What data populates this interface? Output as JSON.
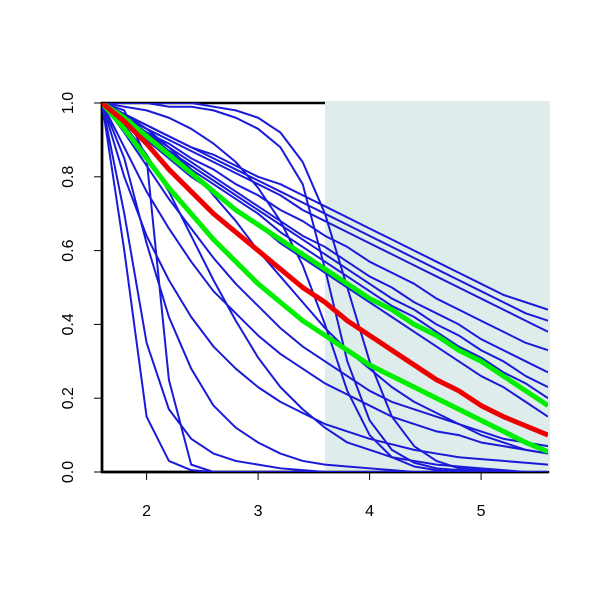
{
  "chart_data": {
    "type": "line",
    "xlim": [
      1.6,
      5.6
    ],
    "ylim": [
      0,
      1
    ],
    "xticks": [
      2,
      3,
      4,
      5
    ],
    "yticks": [
      {
        "value": 0,
        "label": "0.0"
      },
      {
        "value": 0.2,
        "label": "0.2"
      },
      {
        "value": 0.4,
        "label": "0.4"
      },
      {
        "value": 0.6,
        "label": "0.6"
      },
      {
        "value": 0.8,
        "label": "0.8"
      },
      {
        "value": 1,
        "label": "1.0"
      }
    ],
    "shade": {
      "x": [
        3.6,
        5.6
      ],
      "color": "#dfecec"
    },
    "x": [
      1.6,
      1.8,
      2.0,
      2.2,
      2.4,
      2.6,
      2.8,
      3.0,
      3.2,
      3.4,
      3.6,
      3.8,
      4.0,
      4.2,
      4.4,
      4.6,
      4.8,
      5.0,
      5.2,
      5.4,
      5.6
    ],
    "series": [
      {
        "color": "#1a1ad8",
        "width": 2,
        "values": [
          1,
          0.97,
          0.94,
          0.91,
          0.88,
          0.86,
          0.83,
          0.8,
          0.78,
          0.75,
          0.72,
          0.69,
          0.66,
          0.63,
          0.6,
          0.57,
          0.54,
          0.51,
          0.48,
          0.46,
          0.44
        ]
      },
      {
        "color": "#1a1ad8",
        "width": 2,
        "values": [
          1,
          0.97,
          0.94,
          0.91,
          0.88,
          0.85,
          0.82,
          0.79,
          0.76,
          0.73,
          0.7,
          0.67,
          0.64,
          0.61,
          0.58,
          0.55,
          0.52,
          0.49,
          0.46,
          0.43,
          0.41
        ]
      },
      {
        "color": "#1a1ad8",
        "width": 2,
        "values": [
          1,
          0.96,
          0.93,
          0.9,
          0.87,
          0.84,
          0.81,
          0.78,
          0.75,
          0.71,
          0.68,
          0.65,
          0.62,
          0.59,
          0.56,
          0.53,
          0.5,
          0.47,
          0.44,
          0.41,
          0.38
        ]
      },
      {
        "color": "#1a1ad8",
        "width": 2,
        "values": [
          1,
          0.96,
          0.92,
          0.89,
          0.85,
          0.82,
          0.78,
          0.75,
          0.71,
          0.68,
          0.64,
          0.61,
          0.57,
          0.54,
          0.51,
          0.47,
          0.44,
          0.41,
          0.38,
          0.35,
          0.33
        ]
      },
      {
        "color": "#1a1ad8",
        "width": 2,
        "values": [
          1,
          0.96,
          0.92,
          0.88,
          0.84,
          0.8,
          0.76,
          0.72,
          0.68,
          0.64,
          0.61,
          0.57,
          0.53,
          0.5,
          0.46,
          0.43,
          0.4,
          0.36,
          0.33,
          0.3,
          0.27
        ]
      },
      {
        "color": "#1a1ad8",
        "width": 2,
        "values": [
          1,
          0.96,
          0.92,
          0.87,
          0.83,
          0.79,
          0.75,
          0.71,
          0.67,
          0.63,
          0.59,
          0.55,
          0.51,
          0.47,
          0.44,
          0.4,
          0.37,
          0.33,
          0.3,
          0.26,
          0.23
        ]
      },
      {
        "color": "#1a1ad8",
        "width": 2,
        "values": [
          1,
          0.96,
          0.91,
          0.87,
          0.82,
          0.78,
          0.74,
          0.7,
          0.65,
          0.61,
          0.57,
          0.53,
          0.49,
          0.45,
          0.42,
          0.38,
          0.34,
          0.31,
          0.27,
          0.24,
          0.2
        ]
      },
      {
        "color": "#1a1ad8",
        "width": 2,
        "values": [
          1,
          0.95,
          0.9,
          0.85,
          0.8,
          0.76,
          0.71,
          0.67,
          0.62,
          0.58,
          0.54,
          0.5,
          0.46,
          0.42,
          0.38,
          0.34,
          0.3,
          0.26,
          0.23,
          0.19,
          0.15
        ]
      },
      {
        "color": "#1a1ad8",
        "width": 2,
        "values": [
          1,
          1,
          1,
          0.99,
          0.99,
          0.98,
          0.96,
          0.93,
          0.88,
          0.78,
          0.55,
          0.3,
          0.14,
          0.06,
          0.025,
          0.01,
          0.005,
          0,
          0,
          0,
          0
        ]
      },
      {
        "color": "#1a1ad8",
        "width": 2,
        "values": [
          1,
          1,
          1,
          1,
          1,
          0.99,
          0.98,
          0.96,
          0.92,
          0.84,
          0.7,
          0.5,
          0.3,
          0.15,
          0.07,
          0.03,
          0.01,
          0.005,
          0,
          0,
          0
        ]
      },
      {
        "color": "#1a1ad8",
        "width": 2,
        "values": [
          1,
          0.99,
          0.98,
          0.96,
          0.93,
          0.89,
          0.84,
          0.77,
          0.68,
          0.56,
          0.4,
          0.22,
          0.1,
          0.04,
          0.015,
          0.005,
          0,
          0,
          0,
          0,
          0
        ]
      },
      {
        "color": "#1a1ad8",
        "width": 2,
        "values": [
          1,
          0.98,
          0.85,
          0.25,
          0.02,
          0,
          0,
          0,
          0,
          0,
          0,
          0,
          0,
          0,
          0,
          0,
          0,
          0,
          0,
          0,
          0
        ]
      },
      {
        "color": "#1a1ad8",
        "width": 2,
        "values": [
          1,
          0.6,
          0.15,
          0.03,
          0.005,
          0,
          0,
          0,
          0,
          0,
          0,
          0,
          0,
          0,
          0,
          0,
          0,
          0,
          0,
          0,
          0
        ]
      },
      {
        "color": "#1a1ad8",
        "width": 2,
        "values": [
          1,
          0.85,
          0.62,
          0.42,
          0.28,
          0.18,
          0.12,
          0.08,
          0.05,
          0.03,
          0.02,
          0.015,
          0.01,
          0.005,
          0,
          0,
          0,
          0,
          0,
          0,
          0
        ]
      },
      {
        "color": "#1a1ad8",
        "width": 2,
        "values": [
          1,
          0.8,
          0.64,
          0.52,
          0.42,
          0.34,
          0.28,
          0.23,
          0.19,
          0.16,
          0.13,
          0.11,
          0.09,
          0.075,
          0.06,
          0.05,
          0.04,
          0.035,
          0.03,
          0.025,
          0.02
        ]
      },
      {
        "color": "#1a1ad8",
        "width": 2,
        "values": [
          1,
          0.88,
          0.76,
          0.66,
          0.57,
          0.49,
          0.43,
          0.37,
          0.32,
          0.28,
          0.24,
          0.21,
          0.18,
          0.15,
          0.13,
          0.11,
          0.1,
          0.08,
          0.07,
          0.06,
          0.05
        ]
      },
      {
        "color": "#1a1ad8",
        "width": 2,
        "values": [
          1,
          0.92,
          0.83,
          0.74,
          0.66,
          0.58,
          0.51,
          0.45,
          0.39,
          0.34,
          0.3,
          0.26,
          0.22,
          0.19,
          0.17,
          0.15,
          0.13,
          0.11,
          0.09,
          0.08,
          0.07
        ]
      },
      {
        "color": "#1a1ad8",
        "width": 2,
        "values": [
          1,
          0.7,
          0.35,
          0.17,
          0.09,
          0.05,
          0.03,
          0.02,
          0.01,
          0.005,
          0,
          0,
          0,
          0,
          0,
          0,
          0,
          0,
          0,
          0,
          0
        ]
      },
      {
        "color": "#1a1ad8",
        "width": 2,
        "values": [
          1,
          0.94,
          0.86,
          0.76,
          0.64,
          0.52,
          0.41,
          0.31,
          0.23,
          0.17,
          0.12,
          0.08,
          0.06,
          0.04,
          0.03,
          0.02,
          0.015,
          0.01,
          0.005,
          0,
          0
        ]
      },
      {
        "color": "#1a1ad8",
        "width": 2,
        "values": [
          1,
          0.97,
          0.93,
          0.88,
          0.82,
          0.75,
          0.68,
          0.6,
          0.53,
          0.46,
          0.39,
          0.33,
          0.28,
          0.23,
          0.19,
          0.16,
          0.13,
          0.1,
          0.08,
          0.06,
          0.05
        ]
      },
      {
        "color": "#00ee00",
        "width": 5,
        "values": [
          1,
          0.96,
          0.91,
          0.86,
          0.81,
          0.76,
          0.71,
          0.67,
          0.63,
          0.59,
          0.55,
          0.51,
          0.47,
          0.44,
          0.4,
          0.37,
          0.33,
          0.3,
          0.26,
          0.22,
          0.18
        ]
      },
      {
        "color": "#00ee00",
        "width": 5,
        "values": [
          1,
          0.93,
          0.85,
          0.77,
          0.7,
          0.63,
          0.57,
          0.51,
          0.46,
          0.41,
          0.37,
          0.33,
          0.29,
          0.26,
          0.23,
          0.2,
          0.17,
          0.14,
          0.11,
          0.08,
          0.055
        ]
      },
      {
        "color": "#ee0000",
        "width": 5,
        "values": [
          1,
          0.95,
          0.89,
          0.82,
          0.76,
          0.7,
          0.65,
          0.6,
          0.55,
          0.5,
          0.46,
          0.41,
          0.37,
          0.33,
          0.29,
          0.25,
          0.22,
          0.18,
          0.15,
          0.125,
          0.1
        ]
      }
    ]
  }
}
